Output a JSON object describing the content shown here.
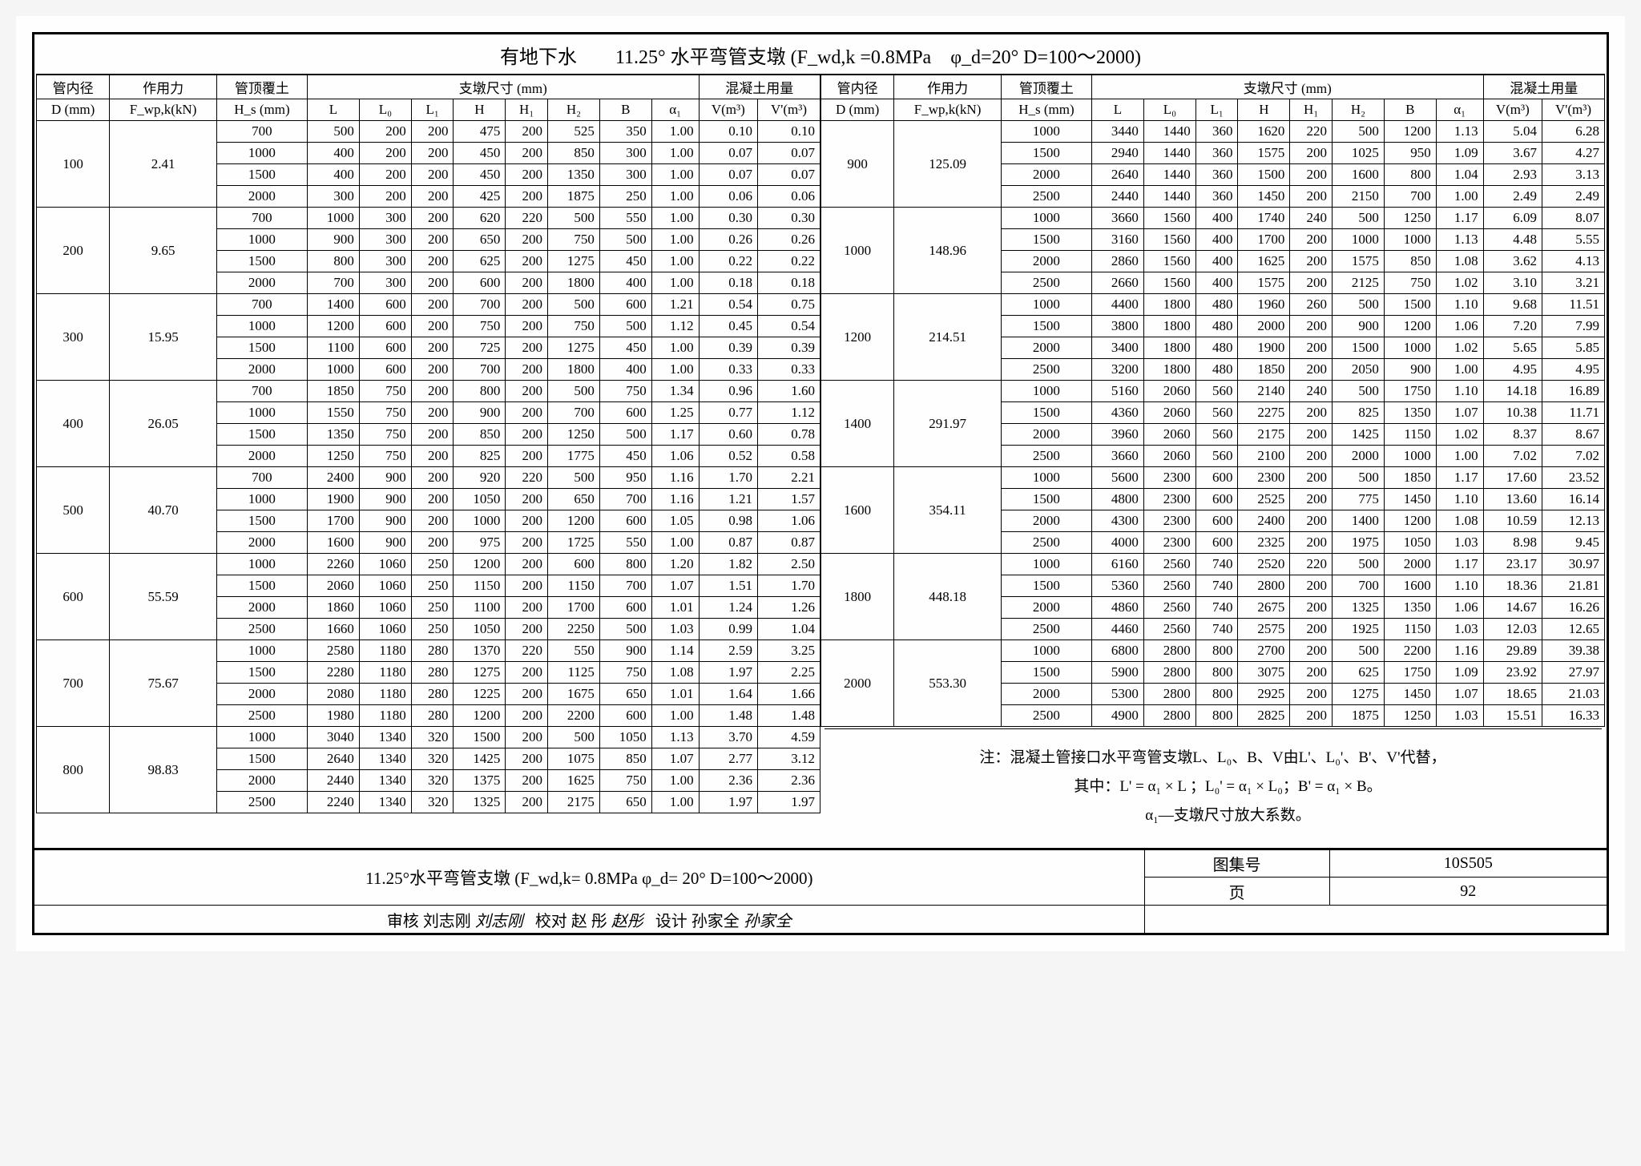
{
  "title": "有地下水　　11.25° 水平弯管支墩 (F_wd,k =0.8MPa　φ_d=20°  D=100～2000)",
  "headers": {
    "d": "管内径",
    "d_unit": "D (mm)",
    "f": "作用力",
    "f_unit": "F_wp,k(kN)",
    "hs": "管顶覆土",
    "hs_unit": "H_s (mm)",
    "dims": "支墩尺寸 (mm)",
    "L": "L",
    "L0": "L₀",
    "L1": "L₁",
    "H": "H",
    "H1": "H₁",
    "H2": "H₂",
    "B": "B",
    "a1": "α₁",
    "conc": "混凝土用量",
    "V": "V(m³)",
    "Vp": "V'(m³)"
  },
  "left_groups": [
    {
      "D": "100",
      "F": "2.41",
      "rows": [
        {
          "Hs": "700",
          "L": "500",
          "L0": "200",
          "L1": "200",
          "H": "475",
          "H1": "200",
          "H2": "525",
          "B": "350",
          "a1": "1.00",
          "V": "0.10",
          "Vp": "0.10"
        },
        {
          "Hs": "1000",
          "L": "400",
          "L0": "200",
          "L1": "200",
          "H": "450",
          "H1": "200",
          "H2": "850",
          "B": "300",
          "a1": "1.00",
          "V": "0.07",
          "Vp": "0.07"
        },
        {
          "Hs": "1500",
          "L": "400",
          "L0": "200",
          "L1": "200",
          "H": "450",
          "H1": "200",
          "H2": "1350",
          "B": "300",
          "a1": "1.00",
          "V": "0.07",
          "Vp": "0.07"
        },
        {
          "Hs": "2000",
          "L": "300",
          "L0": "200",
          "L1": "200",
          "H": "425",
          "H1": "200",
          "H2": "1875",
          "B": "250",
          "a1": "1.00",
          "V": "0.06",
          "Vp": "0.06"
        }
      ]
    },
    {
      "D": "200",
      "F": "9.65",
      "rows": [
        {
          "Hs": "700",
          "L": "1000",
          "L0": "300",
          "L1": "200",
          "H": "620",
          "H1": "220",
          "H2": "500",
          "B": "550",
          "a1": "1.00",
          "V": "0.30",
          "Vp": "0.30"
        },
        {
          "Hs": "1000",
          "L": "900",
          "L0": "300",
          "L1": "200",
          "H": "650",
          "H1": "200",
          "H2": "750",
          "B": "500",
          "a1": "1.00",
          "V": "0.26",
          "Vp": "0.26"
        },
        {
          "Hs": "1500",
          "L": "800",
          "L0": "300",
          "L1": "200",
          "H": "625",
          "H1": "200",
          "H2": "1275",
          "B": "450",
          "a1": "1.00",
          "V": "0.22",
          "Vp": "0.22"
        },
        {
          "Hs": "2000",
          "L": "700",
          "L0": "300",
          "L1": "200",
          "H": "600",
          "H1": "200",
          "H2": "1800",
          "B": "400",
          "a1": "1.00",
          "V": "0.18",
          "Vp": "0.18"
        }
      ]
    },
    {
      "D": "300",
      "F": "15.95",
      "rows": [
        {
          "Hs": "700",
          "L": "1400",
          "L0": "600",
          "L1": "200",
          "H": "700",
          "H1": "200",
          "H2": "500",
          "B": "600",
          "a1": "1.21",
          "V": "0.54",
          "Vp": "0.75"
        },
        {
          "Hs": "1000",
          "L": "1200",
          "L0": "600",
          "L1": "200",
          "H": "750",
          "H1": "200",
          "H2": "750",
          "B": "500",
          "a1": "1.12",
          "V": "0.45",
          "Vp": "0.54"
        },
        {
          "Hs": "1500",
          "L": "1100",
          "L0": "600",
          "L1": "200",
          "H": "725",
          "H1": "200",
          "H2": "1275",
          "B": "450",
          "a1": "1.00",
          "V": "0.39",
          "Vp": "0.39"
        },
        {
          "Hs": "2000",
          "L": "1000",
          "L0": "600",
          "L1": "200",
          "H": "700",
          "H1": "200",
          "H2": "1800",
          "B": "400",
          "a1": "1.00",
          "V": "0.33",
          "Vp": "0.33"
        }
      ]
    },
    {
      "D": "400",
      "F": "26.05",
      "rows": [
        {
          "Hs": "700",
          "L": "1850",
          "L0": "750",
          "L1": "200",
          "H": "800",
          "H1": "200",
          "H2": "500",
          "B": "750",
          "a1": "1.34",
          "V": "0.96",
          "Vp": "1.60"
        },
        {
          "Hs": "1000",
          "L": "1550",
          "L0": "750",
          "L1": "200",
          "H": "900",
          "H1": "200",
          "H2": "700",
          "B": "600",
          "a1": "1.25",
          "V": "0.77",
          "Vp": "1.12"
        },
        {
          "Hs": "1500",
          "L": "1350",
          "L0": "750",
          "L1": "200",
          "H": "850",
          "H1": "200",
          "H2": "1250",
          "B": "500",
          "a1": "1.17",
          "V": "0.60",
          "Vp": "0.78"
        },
        {
          "Hs": "2000",
          "L": "1250",
          "L0": "750",
          "L1": "200",
          "H": "825",
          "H1": "200",
          "H2": "1775",
          "B": "450",
          "a1": "1.06",
          "V": "0.52",
          "Vp": "0.58"
        }
      ]
    },
    {
      "D": "500",
      "F": "40.70",
      "rows": [
        {
          "Hs": "700",
          "L": "2400",
          "L0": "900",
          "L1": "200",
          "H": "920",
          "H1": "220",
          "H2": "500",
          "B": "950",
          "a1": "1.16",
          "V": "1.70",
          "Vp": "2.21"
        },
        {
          "Hs": "1000",
          "L": "1900",
          "L0": "900",
          "L1": "200",
          "H": "1050",
          "H1": "200",
          "H2": "650",
          "B": "700",
          "a1": "1.16",
          "V": "1.21",
          "Vp": "1.57"
        },
        {
          "Hs": "1500",
          "L": "1700",
          "L0": "900",
          "L1": "200",
          "H": "1000",
          "H1": "200",
          "H2": "1200",
          "B": "600",
          "a1": "1.05",
          "V": "0.98",
          "Vp": "1.06"
        },
        {
          "Hs": "2000",
          "L": "1600",
          "L0": "900",
          "L1": "200",
          "H": "975",
          "H1": "200",
          "H2": "1725",
          "B": "550",
          "a1": "1.00",
          "V": "0.87",
          "Vp": "0.87"
        }
      ]
    },
    {
      "D": "600",
      "F": "55.59",
      "rows": [
        {
          "Hs": "1000",
          "L": "2260",
          "L0": "1060",
          "L1": "250",
          "H": "1200",
          "H1": "200",
          "H2": "600",
          "B": "800",
          "a1": "1.20",
          "V": "1.82",
          "Vp": "2.50"
        },
        {
          "Hs": "1500",
          "L": "2060",
          "L0": "1060",
          "L1": "250",
          "H": "1150",
          "H1": "200",
          "H2": "1150",
          "B": "700",
          "a1": "1.07",
          "V": "1.51",
          "Vp": "1.70"
        },
        {
          "Hs": "2000",
          "L": "1860",
          "L0": "1060",
          "L1": "250",
          "H": "1100",
          "H1": "200",
          "H2": "1700",
          "B": "600",
          "a1": "1.01",
          "V": "1.24",
          "Vp": "1.26"
        },
        {
          "Hs": "2500",
          "L": "1660",
          "L0": "1060",
          "L1": "250",
          "H": "1050",
          "H1": "200",
          "H2": "2250",
          "B": "500",
          "a1": "1.03",
          "V": "0.99",
          "Vp": "1.04"
        }
      ]
    },
    {
      "D": "700",
      "F": "75.67",
      "rows": [
        {
          "Hs": "1000",
          "L": "2580",
          "L0": "1180",
          "L1": "280",
          "H": "1370",
          "H1": "220",
          "H2": "550",
          "B": "900",
          "a1": "1.14",
          "V": "2.59",
          "Vp": "3.25"
        },
        {
          "Hs": "1500",
          "L": "2280",
          "L0": "1180",
          "L1": "280",
          "H": "1275",
          "H1": "200",
          "H2": "1125",
          "B": "750",
          "a1": "1.08",
          "V": "1.97",
          "Vp": "2.25"
        },
        {
          "Hs": "2000",
          "L": "2080",
          "L0": "1180",
          "L1": "280",
          "H": "1225",
          "H1": "200",
          "H2": "1675",
          "B": "650",
          "a1": "1.01",
          "V": "1.64",
          "Vp": "1.66"
        },
        {
          "Hs": "2500",
          "L": "1980",
          "L0": "1180",
          "L1": "280",
          "H": "1200",
          "H1": "200",
          "H2": "2200",
          "B": "600",
          "a1": "1.00",
          "V": "1.48",
          "Vp": "1.48"
        }
      ]
    },
    {
      "D": "800",
      "F": "98.83",
      "rows": [
        {
          "Hs": "1000",
          "L": "3040",
          "L0": "1340",
          "L1": "320",
          "H": "1500",
          "H1": "200",
          "H2": "500",
          "B": "1050",
          "a1": "1.13",
          "V": "3.70",
          "Vp": "4.59"
        },
        {
          "Hs": "1500",
          "L": "2640",
          "L0": "1340",
          "L1": "320",
          "H": "1425",
          "H1": "200",
          "H2": "1075",
          "B": "850",
          "a1": "1.07",
          "V": "2.77",
          "Vp": "3.12"
        },
        {
          "Hs": "2000",
          "L": "2440",
          "L0": "1340",
          "L1": "320",
          "H": "1375",
          "H1": "200",
          "H2": "1625",
          "B": "750",
          "a1": "1.00",
          "V": "2.36",
          "Vp": "2.36"
        },
        {
          "Hs": "2500",
          "L": "2240",
          "L0": "1340",
          "L1": "320",
          "H": "1325",
          "H1": "200",
          "H2": "2175",
          "B": "650",
          "a1": "1.00",
          "V": "1.97",
          "Vp": "1.97"
        }
      ]
    }
  ],
  "right_groups": [
    {
      "D": "900",
      "F": "125.09",
      "rows": [
        {
          "Hs": "1000",
          "L": "3440",
          "L0": "1440",
          "L1": "360",
          "H": "1620",
          "H1": "220",
          "H2": "500",
          "B": "1200",
          "a1": "1.13",
          "V": "5.04",
          "Vp": "6.28"
        },
        {
          "Hs": "1500",
          "L": "2940",
          "L0": "1440",
          "L1": "360",
          "H": "1575",
          "H1": "200",
          "H2": "1025",
          "B": "950",
          "a1": "1.09",
          "V": "3.67",
          "Vp": "4.27"
        },
        {
          "Hs": "2000",
          "L": "2640",
          "L0": "1440",
          "L1": "360",
          "H": "1500",
          "H1": "200",
          "H2": "1600",
          "B": "800",
          "a1": "1.04",
          "V": "2.93",
          "Vp": "3.13"
        },
        {
          "Hs": "2500",
          "L": "2440",
          "L0": "1440",
          "L1": "360",
          "H": "1450",
          "H1": "200",
          "H2": "2150",
          "B": "700",
          "a1": "1.00",
          "V": "2.49",
          "Vp": "2.49"
        }
      ]
    },
    {
      "D": "1000",
      "F": "148.96",
      "rows": [
        {
          "Hs": "1000",
          "L": "3660",
          "L0": "1560",
          "L1": "400",
          "H": "1740",
          "H1": "240",
          "H2": "500",
          "B": "1250",
          "a1": "1.17",
          "V": "6.09",
          "Vp": "8.07"
        },
        {
          "Hs": "1500",
          "L": "3160",
          "L0": "1560",
          "L1": "400",
          "H": "1700",
          "H1": "200",
          "H2": "1000",
          "B": "1000",
          "a1": "1.13",
          "V": "4.48",
          "Vp": "5.55"
        },
        {
          "Hs": "2000",
          "L": "2860",
          "L0": "1560",
          "L1": "400",
          "H": "1625",
          "H1": "200",
          "H2": "1575",
          "B": "850",
          "a1": "1.08",
          "V": "3.62",
          "Vp": "4.13"
        },
        {
          "Hs": "2500",
          "L": "2660",
          "L0": "1560",
          "L1": "400",
          "H": "1575",
          "H1": "200",
          "H2": "2125",
          "B": "750",
          "a1": "1.02",
          "V": "3.10",
          "Vp": "3.21"
        }
      ]
    },
    {
      "D": "1200",
      "F": "214.51",
      "rows": [
        {
          "Hs": "1000",
          "L": "4400",
          "L0": "1800",
          "L1": "480",
          "H": "1960",
          "H1": "260",
          "H2": "500",
          "B": "1500",
          "a1": "1.10",
          "V": "9.68",
          "Vp": "11.51"
        },
        {
          "Hs": "1500",
          "L": "3800",
          "L0": "1800",
          "L1": "480",
          "H": "2000",
          "H1": "200",
          "H2": "900",
          "B": "1200",
          "a1": "1.06",
          "V": "7.20",
          "Vp": "7.99"
        },
        {
          "Hs": "2000",
          "L": "3400",
          "L0": "1800",
          "L1": "480",
          "H": "1900",
          "H1": "200",
          "H2": "1500",
          "B": "1000",
          "a1": "1.02",
          "V": "5.65",
          "Vp": "5.85"
        },
        {
          "Hs": "2500",
          "L": "3200",
          "L0": "1800",
          "L1": "480",
          "H": "1850",
          "H1": "200",
          "H2": "2050",
          "B": "900",
          "a1": "1.00",
          "V": "4.95",
          "Vp": "4.95"
        }
      ]
    },
    {
      "D": "1400",
      "F": "291.97",
      "rows": [
        {
          "Hs": "1000",
          "L": "5160",
          "L0": "2060",
          "L1": "560",
          "H": "2140",
          "H1": "240",
          "H2": "500",
          "B": "1750",
          "a1": "1.10",
          "V": "14.18",
          "Vp": "16.89"
        },
        {
          "Hs": "1500",
          "L": "4360",
          "L0": "2060",
          "L1": "560",
          "H": "2275",
          "H1": "200",
          "H2": "825",
          "B": "1350",
          "a1": "1.07",
          "V": "10.38",
          "Vp": "11.71"
        },
        {
          "Hs": "2000",
          "L": "3960",
          "L0": "2060",
          "L1": "560",
          "H": "2175",
          "H1": "200",
          "H2": "1425",
          "B": "1150",
          "a1": "1.02",
          "V": "8.37",
          "Vp": "8.67"
        },
        {
          "Hs": "2500",
          "L": "3660",
          "L0": "2060",
          "L1": "560",
          "H": "2100",
          "H1": "200",
          "H2": "2000",
          "B": "1000",
          "a1": "1.00",
          "V": "7.02",
          "Vp": "7.02"
        }
      ]
    },
    {
      "D": "1600",
      "F": "354.11",
      "rows": [
        {
          "Hs": "1000",
          "L": "5600",
          "L0": "2300",
          "L1": "600",
          "H": "2300",
          "H1": "200",
          "H2": "500",
          "B": "1850",
          "a1": "1.17",
          "V": "17.60",
          "Vp": "23.52"
        },
        {
          "Hs": "1500",
          "L": "4800",
          "L0": "2300",
          "L1": "600",
          "H": "2525",
          "H1": "200",
          "H2": "775",
          "B": "1450",
          "a1": "1.10",
          "V": "13.60",
          "Vp": "16.14"
        },
        {
          "Hs": "2000",
          "L": "4300",
          "L0": "2300",
          "L1": "600",
          "H": "2400",
          "H1": "200",
          "H2": "1400",
          "B": "1200",
          "a1": "1.08",
          "V": "10.59",
          "Vp": "12.13"
        },
        {
          "Hs": "2500",
          "L": "4000",
          "L0": "2300",
          "L1": "600",
          "H": "2325",
          "H1": "200",
          "H2": "1975",
          "B": "1050",
          "a1": "1.03",
          "V": "8.98",
          "Vp": "9.45"
        }
      ]
    },
    {
      "D": "1800",
      "F": "448.18",
      "rows": [
        {
          "Hs": "1000",
          "L": "6160",
          "L0": "2560",
          "L1": "740",
          "H": "2520",
          "H1": "220",
          "H2": "500",
          "B": "2000",
          "a1": "1.17",
          "V": "23.17",
          "Vp": "30.97"
        },
        {
          "Hs": "1500",
          "L": "5360",
          "L0": "2560",
          "L1": "740",
          "H": "2800",
          "H1": "200",
          "H2": "700",
          "B": "1600",
          "a1": "1.10",
          "V": "18.36",
          "Vp": "21.81"
        },
        {
          "Hs": "2000",
          "L": "4860",
          "L0": "2560",
          "L1": "740",
          "H": "2675",
          "H1": "200",
          "H2": "1325",
          "B": "1350",
          "a1": "1.06",
          "V": "14.67",
          "Vp": "16.26"
        },
        {
          "Hs": "2500",
          "L": "4460",
          "L0": "2560",
          "L1": "740",
          "H": "2575",
          "H1": "200",
          "H2": "1925",
          "B": "1150",
          "a1": "1.03",
          "V": "12.03",
          "Vp": "12.65"
        }
      ]
    },
    {
      "D": "2000",
      "F": "553.30",
      "rows": [
        {
          "Hs": "1000",
          "L": "6800",
          "L0": "2800",
          "L1": "800",
          "H": "2700",
          "H1": "200",
          "H2": "500",
          "B": "2200",
          "a1": "1.16",
          "V": "29.89",
          "Vp": "39.38"
        },
        {
          "Hs": "1500",
          "L": "5900",
          "L0": "2800",
          "L1": "800",
          "H": "3075",
          "H1": "200",
          "H2": "625",
          "B": "1750",
          "a1": "1.09",
          "V": "23.92",
          "Vp": "27.97"
        },
        {
          "Hs": "2000",
          "L": "5300",
          "L0": "2800",
          "L1": "800",
          "H": "2925",
          "H1": "200",
          "H2": "1275",
          "B": "1450",
          "a1": "1.07",
          "V": "18.65",
          "Vp": "21.03"
        },
        {
          "Hs": "2500",
          "L": "4900",
          "L0": "2800",
          "L1": "800",
          "H": "2825",
          "H1": "200",
          "H2": "1875",
          "B": "1250",
          "a1": "1.03",
          "V": "15.51",
          "Vp": "16.33"
        }
      ]
    }
  ],
  "note": {
    "l1": "注：混凝土管接口水平弯管支墩L、L₀、B、V由L'、L₀'、B'、V'代替，",
    "l2": "其中：L' = α₁ × L ；L₀' = α₁ × L₀；B' = α₁ × B。",
    "l3": "α₁—支墩尺寸放大系数。"
  },
  "footer": {
    "caption": "11.25°水平弯管支墩 (F_wd,k= 0.8MPa  φ_d= 20°  D=100～2000)",
    "tuji_label": "图集号",
    "tuji_val": "10S505",
    "shenhe": "审核",
    "shenhe_name": "刘志刚",
    "jiaodui": "校对",
    "jiaodui_name": "赵 彤",
    "sheji": "设计",
    "sheji_name": "孙家全",
    "page_label": "页",
    "page_val": "92"
  }
}
